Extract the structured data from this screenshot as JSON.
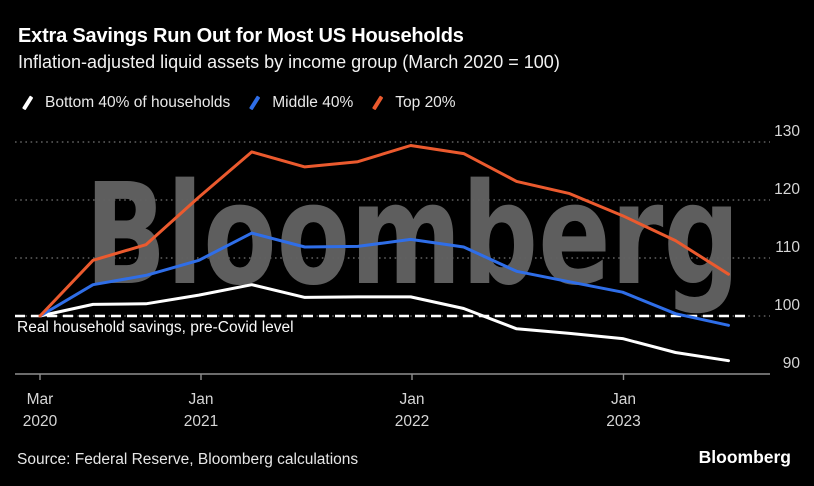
{
  "header": {
    "title": "Extra Savings Run Out for Most US Households",
    "subtitle": "Inflation-adjusted liquid assets by income group (March 2020 = 100)"
  },
  "watermark": "Bloomberg",
  "source": "Source: Federal Reserve, Bloomberg calculations",
  "logo": "Bloomberg",
  "colors": {
    "bottom40": "#ffffff",
    "middle40": "#2f6ee8",
    "top20": "#eb5a2e",
    "grid": "#616161",
    "axis": "#8f8f8f",
    "watermark": "#5e5e5e"
  },
  "chart_data": {
    "type": "line",
    "title": "Extra Savings Run Out for Most US Households",
    "subtitle": "Inflation-adjusted liquid assets by income group (March 2020 = 100)",
    "x": [
      "Mar 2020",
      "Jun 2020",
      "Sep 2020",
      "Dec 2020",
      "Mar 2021",
      "Jun 2021",
      "Sep 2021",
      "Dec 2021",
      "Mar 2022",
      "Jun 2022",
      "Sep 2022",
      "Dec 2022",
      "Mar 2023",
      "Jun 2023"
    ],
    "series": [
      {
        "name": "Bottom 40% of households",
        "color": "#ffffff",
        "values": [
          100,
          102.0,
          102.1,
          103.6,
          105.4,
          103.2,
          103.3,
          103.3,
          101.3,
          97.8,
          97.0,
          96.1,
          93.7,
          92.3
        ]
      },
      {
        "name": "Middle 40%",
        "color": "#2f6ee8",
        "values": [
          100,
          105.4,
          107.0,
          109.6,
          114.3,
          111.9,
          112.0,
          113.2,
          111.9,
          107.7,
          105.9,
          104.1,
          100.4,
          98.4
        ]
      },
      {
        "name": "Top 20%",
        "color": "#eb5a2e",
        "values": [
          100,
          109.6,
          112.3,
          120.5,
          128.3,
          125.7,
          126.6,
          129.4,
          128.0,
          123.2,
          121.1,
          117.3,
          113.0,
          107.2
        ]
      }
    ],
    "ylim": [
      90,
      130
    ],
    "y_tick_labels": [
      "130",
      "120",
      "110",
      "100",
      "90"
    ],
    "x_ticks": [
      {
        "line1": "Mar",
        "line2": "2020"
      },
      {
        "line1": "Jan",
        "line2": "2021"
      },
      {
        "line1": "Jan",
        "line2": "2022"
      },
      {
        "line1": "Jan",
        "line2": "2023"
      }
    ],
    "grid": "horizontal-dotted",
    "legend_position": "top",
    "annotation_line": {
      "label": "Real household savings, pre-Covid level",
      "value": 100
    }
  }
}
